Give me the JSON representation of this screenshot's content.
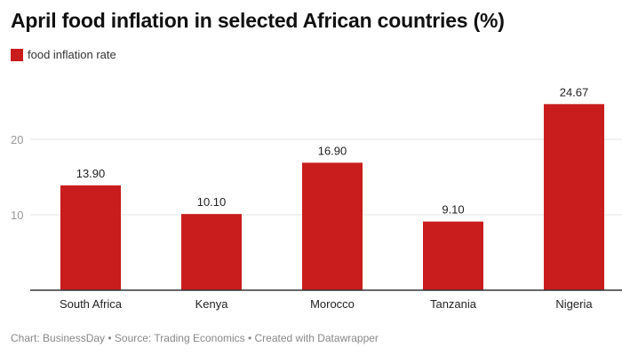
{
  "colors": {
    "bar": "#c91d1d",
    "grid": "#e3e3e3",
    "baseline": "#333333",
    "tick": "#999999"
  },
  "chart_data": {
    "type": "bar",
    "title": "April food inflation in selected African countries (%)",
    "categories": [
      "South Africa",
      "Kenya",
      "Morocco",
      "Tanzania",
      "Nigeria"
    ],
    "series": [
      {
        "name": "food inflation rate",
        "values": [
          13.9,
          10.1,
          16.9,
          9.1,
          24.67
        ],
        "labels": [
          "13.90",
          "10.10",
          "16.90",
          "9.10",
          "24.67"
        ]
      }
    ],
    "y_ticks": [
      10,
      20
    ],
    "ylim": [
      0,
      25
    ],
    "grid": true,
    "legend": "top-left"
  },
  "footer": {
    "text": "Chart: BusinessDay • Source: Trading Economics • Created with Datawrapper"
  }
}
